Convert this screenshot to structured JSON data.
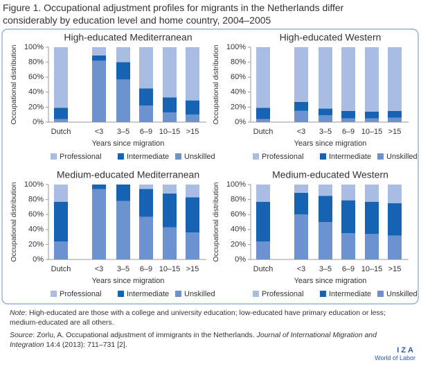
{
  "figure_title": [
    "Figure 1. Occupational adjustment profiles for migrants in the Netherlands differ",
    "considerably by education level and home country, 2004–2005"
  ],
  "chart_data": [
    {
      "type": "bar",
      "stacked": true,
      "title": "High-educated Mediterranean",
      "ylabel": "Occupational distribution",
      "xlabel": "Years since migration",
      "categories": [
        "Dutch",
        "<3",
        "3–5",
        "6–9",
        "10–15",
        ">15"
      ],
      "series": [
        {
          "name": "Professional",
          "color": "#a9bde3",
          "values": [
            81,
            11,
            20,
            55,
            67,
            71
          ]
        },
        {
          "name": "Intermediate",
          "color": "#1662b3",
          "values": [
            15,
            7,
            23,
            23,
            20,
            19
          ]
        },
        {
          "name": "Unskilled",
          "color": "#6d92d0",
          "values": [
            4,
            82,
            57,
            22,
            13,
            10
          ]
        }
      ],
      "ylim": [
        0,
        100
      ],
      "yticks": [
        {
          "value": 0,
          "label": "0%"
        },
        {
          "value": 20,
          "label": "20%"
        },
        {
          "value": 40,
          "label": "40%"
        },
        {
          "value": 60,
          "label": "60%"
        },
        {
          "value": 80,
          "label": "80%"
        },
        {
          "value": 100,
          "label": "100%"
        }
      ]
    },
    {
      "type": "bar",
      "stacked": true,
      "title": "High-educated Western",
      "ylabel": "Occupational distribution",
      "xlabel": "Years since migration",
      "categories": [
        "Dutch",
        "<3",
        "3–5",
        "6–9",
        "10–15",
        ">15"
      ],
      "series": [
        {
          "name": "Professional",
          "color": "#a9bde3",
          "values": [
            81,
            73,
            82,
            85,
            86,
            85
          ]
        },
        {
          "name": "Intermediate",
          "color": "#1662b3",
          "values": [
            15,
            12,
            9,
            10,
            9,
            9
          ]
        },
        {
          "name": "Unskilled",
          "color": "#6d92d0",
          "values": [
            4,
            15,
            9,
            5,
            5,
            6
          ]
        }
      ],
      "ylim": [
        0,
        100
      ],
      "yticks": [
        {
          "value": 0,
          "label": "0%"
        },
        {
          "value": 20,
          "label": "20%"
        },
        {
          "value": 40,
          "label": "40%"
        },
        {
          "value": 60,
          "label": "60%"
        },
        {
          "value": 80,
          "label": "80%"
        },
        {
          "value": 100,
          "label": "100%"
        }
      ]
    },
    {
      "type": "bar",
      "stacked": true,
      "title": "Medium-educated Mediterranean",
      "ylabel": "Occupational distribution",
      "xlabel": "Years since migration",
      "categories": [
        "Dutch",
        "<3",
        "3–5",
        "6–9",
        "10–15",
        ">15"
      ],
      "series": [
        {
          "name": "Professional",
          "color": "#a9bde3",
          "values": [
            23,
            0,
            0,
            6,
            12,
            17
          ]
        },
        {
          "name": "Intermediate",
          "color": "#1662b3",
          "values": [
            53,
            6,
            22,
            37,
            45,
            47
          ]
        },
        {
          "name": "Unskilled",
          "color": "#6d92d0",
          "values": [
            24,
            94,
            78,
            57,
            43,
            36
          ]
        }
      ],
      "ylim": [
        0,
        100
      ],
      "yticks": [
        {
          "value": 0,
          "label": "0%"
        },
        {
          "value": 20,
          "label": "20%"
        },
        {
          "value": 40,
          "label": "40%"
        },
        {
          "value": 60,
          "label": "60%"
        },
        {
          "value": 80,
          "label": "80%"
        },
        {
          "value": 100,
          "label": "100%"
        }
      ]
    },
    {
      "type": "bar",
      "stacked": true,
      "title": "Medium-educated Western",
      "ylabel": "Occupational distribution",
      "xlabel": "Years since migration",
      "categories": [
        "Dutch",
        "<3",
        "3–5",
        "6–9",
        "10–15",
        ">15"
      ],
      "series": [
        {
          "name": "Professional",
          "color": "#a9bde3",
          "values": [
            23,
            11,
            15,
            21,
            23,
            25
          ]
        },
        {
          "name": "Intermediate",
          "color": "#1662b3",
          "values": [
            53,
            29,
            35,
            44,
            43,
            43
          ]
        },
        {
          "name": "Unskilled",
          "color": "#6d92d0",
          "values": [
            24,
            60,
            50,
            35,
            34,
            32
          ]
        }
      ],
      "ylim": [
        0,
        100
      ],
      "yticks": [
        {
          "value": 0,
          "label": "0%"
        },
        {
          "value": 20,
          "label": "20%"
        },
        {
          "value": 40,
          "label": "40%"
        },
        {
          "value": 60,
          "label": "60%"
        },
        {
          "value": 80,
          "label": "80%"
        },
        {
          "value": 100,
          "label": "100%"
        }
      ]
    }
  ],
  "note": {
    "label": "Note",
    "text": ": High-educated are those with a college and university education; low-educated have primary education or less; medium-educated are all others."
  },
  "source": {
    "label": "Source",
    "text": ": Zorlu, A. Occupational adjustment of immigrants in the Netherlands. ",
    "journal": "Journal of International Migration and Integration",
    "rest": " 14:4 (2013): 711–731 [2]."
  },
  "logo": {
    "name": "IZA",
    "sub": "World of Labor"
  }
}
